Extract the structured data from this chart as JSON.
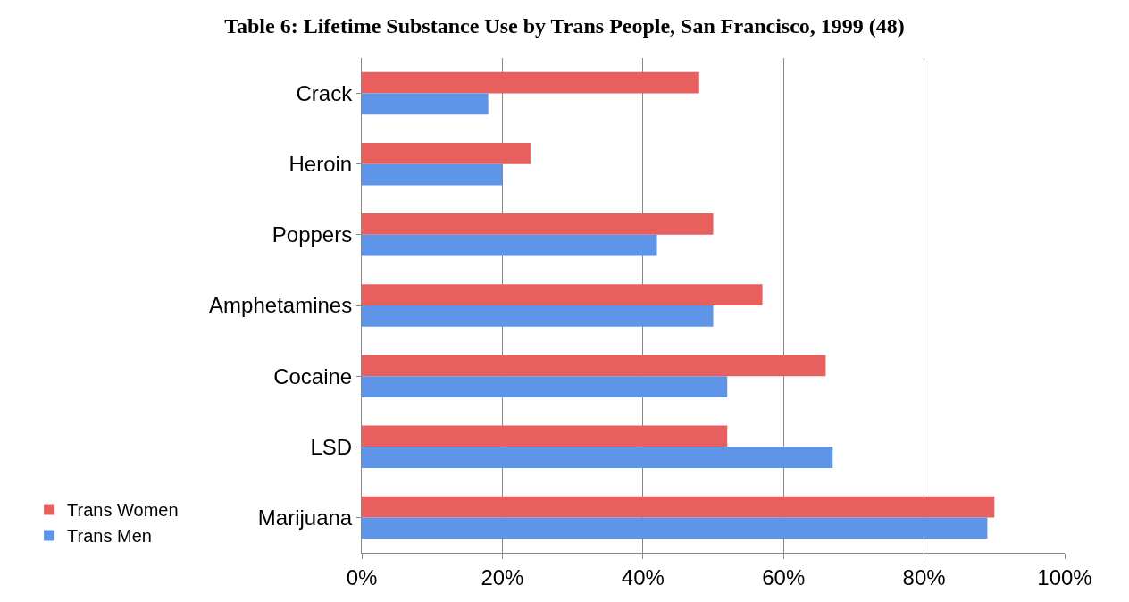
{
  "chart_data": {
    "type": "bar",
    "orientation": "horizontal",
    "title": "Table 6: Lifetime Substance Use by Trans People, San Francisco, 1999 (48)",
    "categories": [
      "Crack",
      "Heroin",
      "Poppers",
      "Amphetamines",
      "Cocaine",
      "LSD",
      "Marijuana"
    ],
    "series": [
      {
        "name": "Trans Women",
        "color": "#e8605e",
        "values": [
          48,
          24,
          50,
          57,
          66,
          52,
          90
        ]
      },
      {
        "name": "Trans Men",
        "color": "#5f95e8",
        "values": [
          18,
          20,
          42,
          50,
          52,
          67,
          89
        ]
      }
    ],
    "xlim": [
      0,
      100
    ],
    "xticks": [
      {
        "value": 0,
        "label": "0%"
      },
      {
        "value": 20,
        "label": "20%"
      },
      {
        "value": 40,
        "label": "40%"
      },
      {
        "value": 60,
        "label": "60%"
      },
      {
        "value": 80,
        "label": "80%"
      },
      {
        "value": 100,
        "label": "100%"
      }
    ],
    "grid": "x",
    "legend": "left"
  }
}
